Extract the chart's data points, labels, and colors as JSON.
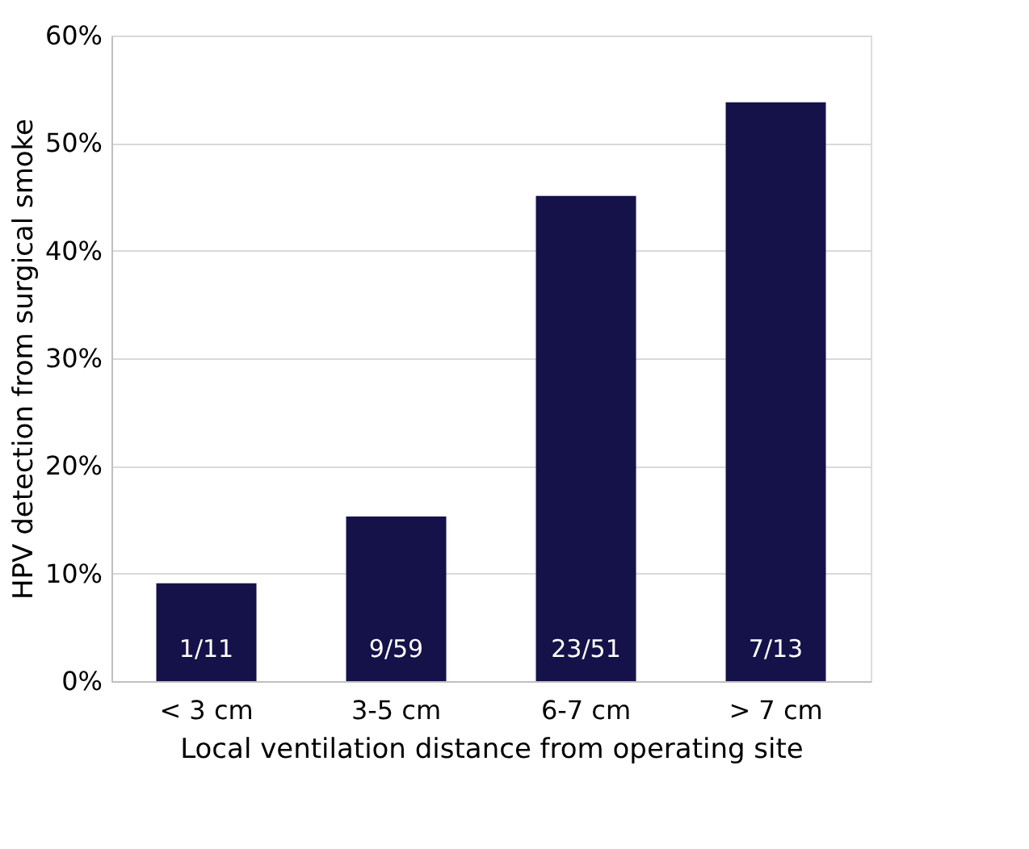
{
  "chart_data": {
    "type": "bar",
    "xlabel": "Local ventilation distance from operating site",
    "ylabel": "HPV detection from surgical smoke",
    "categories": [
      "< 3 cm",
      "3-5 cm",
      "6-7 cm",
      "> 7 cm"
    ],
    "values": [
      9.1,
      15.3,
      45.1,
      53.8
    ],
    "value_labels": [
      "1/11",
      "9/59",
      "23/51",
      "7/13"
    ],
    "color": "#15124a",
    "ylim": [
      0,
      60
    ],
    "yticks": [
      {
        "value": 0,
        "label": "0%"
      },
      {
        "value": 10,
        "label": "10%"
      },
      {
        "value": 20,
        "label": "20%"
      },
      {
        "value": 30,
        "label": "30%"
      },
      {
        "value": 40,
        "label": "40%"
      },
      {
        "value": 50,
        "label": "50%"
      },
      {
        "value": 60,
        "label": "60%"
      }
    ],
    "grid": "y"
  }
}
